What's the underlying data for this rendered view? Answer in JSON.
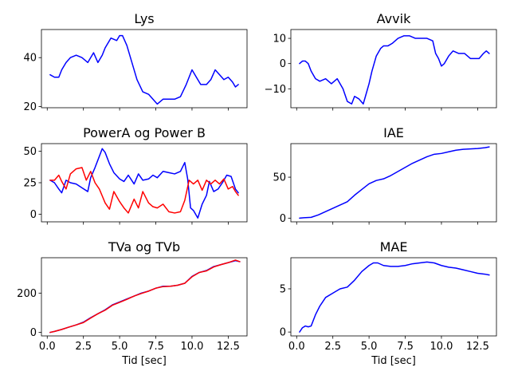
{
  "chart_data": [
    {
      "type": "line",
      "title": "Lys",
      "xlabel": "",
      "ylabel": "",
      "xlim": [
        -0.4,
        13.8
      ],
      "ylim": [
        19.5,
        51.5
      ],
      "x_ticks": [
        0.0,
        2.5,
        5.0,
        7.5,
        10.0,
        12.5
      ],
      "x_tick_labels": [
        "",
        "",
        "",
        "",
        "",
        ""
      ],
      "y_ticks": [
        20,
        40
      ],
      "y_tick_labels": [
        "20",
        "40"
      ],
      "series": [
        {
          "color": "#0000ff",
          "x": [
            0.2,
            0.5,
            0.8,
            1.0,
            1.3,
            1.6,
            2.0,
            2.4,
            2.8,
            3.2,
            3.5,
            3.8,
            4.0,
            4.4,
            4.8,
            5.0,
            5.2,
            5.5,
            5.8,
            6.2,
            6.6,
            7.0,
            7.3,
            7.6,
            8.0,
            8.4,
            8.8,
            9.2,
            9.6,
            10.0,
            10.3,
            10.6,
            11.0,
            11.3,
            11.6,
            11.9,
            12.2,
            12.5,
            12.8,
            13.0,
            13.2
          ],
          "values": [
            33,
            32,
            32,
            35,
            38,
            40,
            41,
            40,
            38,
            42,
            38,
            41,
            44,
            48,
            47,
            49,
            49,
            45,
            39,
            31,
            26,
            25,
            23,
            21,
            23,
            23,
            23,
            24,
            29,
            35,
            32,
            29,
            29,
            31,
            35,
            33,
            31,
            32,
            30,
            28,
            29
          ]
        }
      ]
    },
    {
      "type": "line",
      "title": "Avvik",
      "xlabel": "",
      "ylabel": "",
      "xlim": [
        -0.4,
        13.8
      ],
      "ylim": [
        -17.5,
        13.5
      ],
      "x_ticks": [
        0.0,
        2.5,
        5.0,
        7.5,
        10.0,
        12.5
      ],
      "x_tick_labels": [
        "",
        "",
        "",
        "",
        "",
        ""
      ],
      "y_ticks": [
        -10,
        0,
        10
      ],
      "y_tick_labels": [
        "−10",
        "0",
        "10"
      ],
      "series": [
        {
          "color": "#0000ff",
          "x": [
            0.2,
            0.4,
            0.6,
            0.8,
            1.0,
            1.3,
            1.6,
            2.0,
            2.4,
            2.8,
            3.2,
            3.5,
            3.8,
            4.0,
            4.3,
            4.6,
            4.8,
            5.0,
            5.2,
            5.5,
            5.8,
            6.0,
            6.3,
            6.6,
            7.0,
            7.4,
            7.8,
            8.2,
            8.6,
            9.0,
            9.4,
            9.6,
            9.8,
            10.0,
            10.2,
            10.5,
            10.8,
            11.2,
            11.6,
            12.0,
            12.3,
            12.6,
            12.9,
            13.1,
            13.3
          ],
          "values": [
            0,
            1,
            1,
            0,
            -3,
            -6,
            -7,
            -6,
            -8,
            -6,
            -10,
            -15,
            -16,
            -13,
            -14,
            -16,
            -12,
            -8,
            -3,
            3,
            6,
            7,
            7,
            8,
            10,
            11,
            11,
            10,
            10,
            10,
            9,
            4,
            2,
            -1,
            0,
            3,
            5,
            4,
            4,
            2,
            2,
            2,
            4,
            5,
            4
          ]
        }
      ]
    },
    {
      "type": "line",
      "title": "PowerA og Power B",
      "xlabel": "",
      "ylabel": "",
      "xlim": [
        -0.4,
        13.8
      ],
      "ylim": [
        -6,
        56
      ],
      "x_ticks": [
        0.0,
        2.5,
        5.0,
        7.5,
        10.0,
        12.5
      ],
      "x_tick_labels": [
        "",
        "",
        "",
        "",
        "",
        ""
      ],
      "y_ticks": [
        0,
        25,
        50
      ],
      "y_tick_labels": [
        "0",
        "25",
        "50"
      ],
      "series": [
        {
          "color": "#0000ff",
          "x": [
            0.2,
            0.5,
            0.8,
            1.0,
            1.3,
            1.6,
            2.0,
            2.4,
            2.8,
            3.0,
            3.3,
            3.6,
            3.8,
            4.0,
            4.3,
            4.6,
            5.0,
            5.3,
            5.6,
            6.0,
            6.3,
            6.6,
            7.0,
            7.3,
            7.6,
            8.0,
            8.4,
            8.8,
            9.2,
            9.5,
            9.7,
            9.9,
            10.1,
            10.4,
            10.7,
            11.0,
            11.2,
            11.5,
            11.8,
            12.1,
            12.4,
            12.7,
            13.0,
            13.2
          ],
          "values": [
            27,
            25,
            20,
            17,
            27,
            25,
            24,
            21,
            18,
            29,
            37,
            46,
            52,
            49,
            40,
            33,
            28,
            26,
            31,
            24,
            32,
            27,
            28,
            31,
            29,
            34,
            33,
            32,
            34,
            41,
            28,
            5,
            3,
            -3,
            8,
            15,
            26,
            18,
            20,
            25,
            31,
            30,
            20,
            17
          ]
        },
        {
          "color": "#ff0000",
          "x": [
            0.2,
            0.5,
            0.8,
            1.0,
            1.3,
            1.6,
            2.0,
            2.4,
            2.7,
            3.0,
            3.3,
            3.6,
            4.0,
            4.3,
            4.6,
            5.0,
            5.3,
            5.6,
            6.0,
            6.3,
            6.6,
            7.0,
            7.3,
            7.6,
            8.0,
            8.4,
            8.8,
            9.2,
            9.5,
            9.8,
            10.1,
            10.4,
            10.7,
            11.0,
            11.3,
            11.6,
            11.9,
            12.2,
            12.5,
            12.8,
            13.0,
            13.2
          ],
          "values": [
            27,
            27,
            31,
            26,
            20,
            32,
            36,
            37,
            27,
            34,
            25,
            20,
            9,
            4,
            18,
            10,
            5,
            1,
            12,
            5,
            18,
            9,
            6,
            5,
            8,
            2,
            1,
            2,
            11,
            27,
            24,
            27,
            19,
            27,
            24,
            27,
            24,
            28,
            20,
            22,
            18,
            15
          ]
        }
      ]
    },
    {
      "type": "line",
      "title": "IAE",
      "xlabel": "",
      "ylabel": "",
      "xlim": [
        -0.4,
        13.8
      ],
      "ylim": [
        -4.5,
        91
      ],
      "x_ticks": [
        0.0,
        2.5,
        5.0,
        7.5,
        10.0,
        12.5
      ],
      "x_tick_labels": [
        "",
        "",
        "",
        "",
        "",
        ""
      ],
      "y_ticks": [
        0,
        50
      ],
      "y_tick_labels": [
        "0",
        "50"
      ],
      "series": [
        {
          "color": "#0000ff",
          "x": [
            0.2,
            0.5,
            1.0,
            1.5,
            2.0,
            2.5,
            3.0,
            3.5,
            4.0,
            4.5,
            5.0,
            5.5,
            6.0,
            6.5,
            7.0,
            7.5,
            8.0,
            8.5,
            9.0,
            9.5,
            10.0,
            10.5,
            11.0,
            11.5,
            12.0,
            12.5,
            13.0,
            13.3
          ],
          "values": [
            0,
            0.5,
            1,
            4,
            8,
            12,
            16,
            20,
            28,
            35,
            42,
            46,
            48,
            52,
            57,
            62,
            67,
            71,
            75,
            78,
            79,
            81,
            83,
            84,
            84.5,
            85,
            86,
            87
          ]
        }
      ]
    },
    {
      "type": "line",
      "title": "TVa og TVb",
      "xlabel": "Tid [sec]",
      "ylabel": "",
      "xlim": [
        -0.4,
        13.8
      ],
      "ylim": [
        -18,
        380
      ],
      "x_ticks": [
        0.0,
        2.5,
        5.0,
        7.5,
        10.0,
        12.5
      ],
      "x_tick_labels": [
        "0.0",
        "2.5",
        "5.0",
        "7.5",
        "10.0",
        "12.5"
      ],
      "y_ticks": [
        0,
        200
      ],
      "y_tick_labels": [
        "0",
        "200"
      ],
      "series": [
        {
          "color": "#0000ff",
          "x": [
            0.2,
            0.5,
            1.0,
            1.5,
            2.0,
            2.5,
            3.0,
            3.5,
            4.0,
            4.5,
            5.0,
            5.5,
            6.0,
            6.5,
            7.0,
            7.5,
            8.0,
            8.5,
            9.0,
            9.5,
            10.0,
            10.5,
            11.0,
            11.5,
            12.0,
            12.5,
            13.0,
            13.3
          ],
          "values": [
            0,
            5,
            15,
            27,
            38,
            52,
            75,
            95,
            115,
            140,
            155,
            170,
            185,
            200,
            210,
            225,
            235,
            235,
            240,
            250,
            285,
            305,
            315,
            335,
            345,
            355,
            365,
            360
          ]
        },
        {
          "color": "#ff0000",
          "x": [
            0.2,
            0.5,
            1.0,
            1.5,
            2.0,
            2.5,
            3.0,
            3.5,
            4.0,
            4.5,
            5.0,
            5.5,
            6.0,
            6.5,
            7.0,
            7.5,
            8.0,
            8.5,
            9.0,
            9.5,
            10.0,
            10.5,
            11.0,
            11.5,
            12.0,
            12.5,
            13.0,
            13.3
          ],
          "values": [
            0,
            5,
            15,
            27,
            38,
            50,
            73,
            95,
            113,
            138,
            153,
            168,
            185,
            198,
            210,
            225,
            233,
            235,
            240,
            250,
            283,
            305,
            313,
            333,
            345,
            355,
            368,
            360
          ]
        }
      ]
    },
    {
      "type": "line",
      "title": "MAE",
      "xlabel": "Tid [sec]",
      "ylabel": "",
      "xlim": [
        -0.4,
        13.8
      ],
      "ylim": [
        -0.45,
        8.6
      ],
      "x_ticks": [
        0.0,
        2.5,
        5.0,
        7.5,
        10.0,
        12.5
      ],
      "x_tick_labels": [
        "0.0",
        "2.5",
        "5.0",
        "7.5",
        "10.0",
        "12.5"
      ],
      "y_ticks": [
        0,
        5
      ],
      "y_tick_labels": [
        "0",
        "5"
      ],
      "series": [
        {
          "color": "#0000ff",
          "x": [
            0.2,
            0.4,
            0.6,
            0.8,
            1.0,
            1.3,
            1.6,
            2.0,
            2.5,
            3.0,
            3.5,
            4.0,
            4.5,
            5.0,
            5.3,
            5.6,
            6.0,
            6.5,
            7.0,
            7.5,
            8.0,
            8.5,
            9.0,
            9.5,
            10.0,
            10.5,
            11.0,
            11.5,
            12.0,
            12.5,
            13.0,
            13.3
          ],
          "values": [
            0,
            0.5,
            0.7,
            0.6,
            0.7,
            2,
            3,
            4,
            4.5,
            5,
            5.2,
            6,
            7,
            7.7,
            8,
            8,
            7.7,
            7.6,
            7.6,
            7.7,
            7.9,
            8,
            8.1,
            8,
            7.7,
            7.5,
            7.4,
            7.2,
            7,
            6.8,
            6.7,
            6.6
          ]
        }
      ]
    }
  ]
}
